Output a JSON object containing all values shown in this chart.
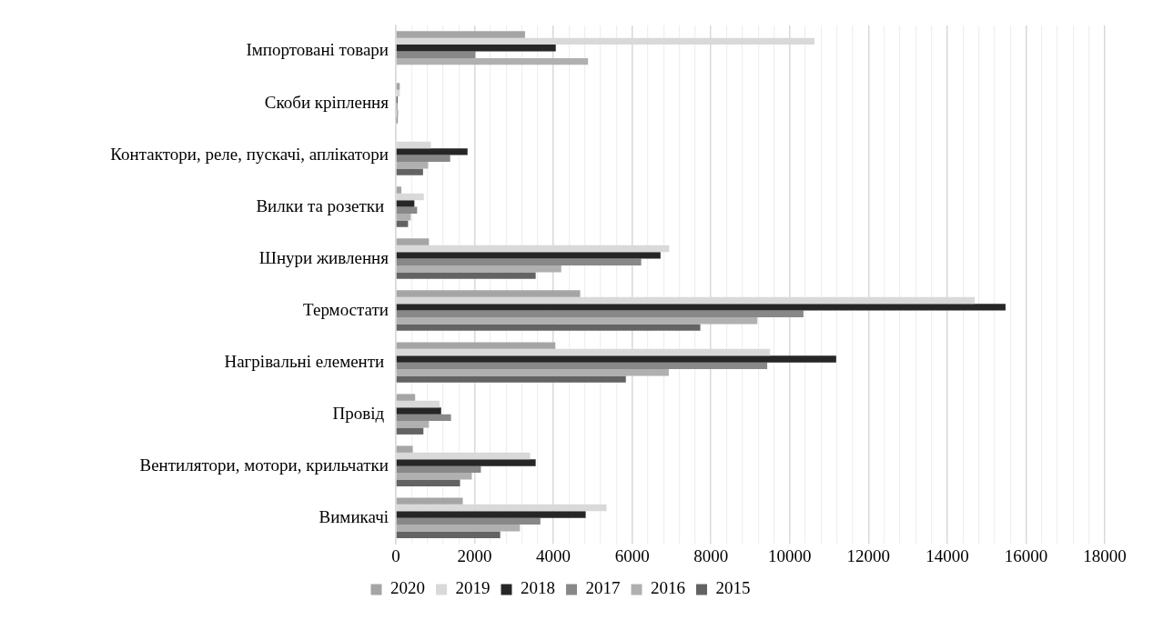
{
  "chart_data": {
    "type": "bar",
    "orientation": "horizontal",
    "categories": [
      "Імпортовані товари",
      "Скоби кріплення",
      "Контактори, реле, пускачі, аплікатори",
      "Вилки та розетки ",
      "Шнури живлення",
      "Термостати",
      "Нагрівальні елементи ",
      "Провід ",
      "Вентилятори, мотори, крильчатки",
      "Вимикачі"
    ],
    "series": [
      {
        "name": "2020",
        "color": "#a5a5a5",
        "values": [
          3280,
          100,
          null,
          140,
          840,
          4680,
          4050,
          490,
          430,
          1700
        ]
      },
      {
        "name": "2019",
        "color": "#d9d9d9",
        "values": [
          10630,
          100,
          890,
          710,
          6940,
          14700,
          9500,
          1110,
          3410,
          5350
        ]
      },
      {
        "name": "2018",
        "color": "#262626",
        "values": [
          4060,
          40,
          1820,
          470,
          6720,
          15480,
          11180,
          1150,
          3550,
          4820
        ]
      },
      {
        "name": "2017",
        "color": "#888888",
        "values": [
          2020,
          40,
          1380,
          540,
          6230,
          10350,
          9430,
          1400,
          2160,
          3670
        ]
      },
      {
        "name": "2016",
        "color": "#b0b0b0",
        "values": [
          4880,
          60,
          820,
          380,
          4200,
          9180,
          6930,
          840,
          1930,
          3150
        ]
      },
      {
        "name": "2015",
        "color": "#636363",
        "values": [
          null,
          40,
          690,
          310,
          3550,
          7730,
          5840,
          700,
          1630,
          2650
        ]
      }
    ],
    "xlim": [
      0,
      18000
    ],
    "xticks": [
      0,
      {
        "value": 400,
        "label": null
      },
      {
        "value": 800,
        "label": null
      },
      {
        "value": 1200,
        "label": null
      },
      {
        "value": 1600,
        "label": null
      },
      2000,
      {
        "value": 2400,
        "label": null
      },
      {
        "value": 2800,
        "label": null
      },
      {
        "value": 3200,
        "label": null
      },
      {
        "value": 3600,
        "label": null
      },
      4000,
      {
        "value": 4400,
        "label": null
      },
      {
        "value": 4800,
        "label": null
      },
      {
        "value": 5200,
        "label": null
      },
      {
        "value": 5600,
        "label": null
      },
      6000,
      {
        "value": 6400,
        "label": null
      },
      {
        "value": 6800,
        "label": null
      },
      {
        "value": 7200,
        "label": null
      },
      {
        "value": 7600,
        "label": null
      },
      8000,
      {
        "value": 8400,
        "label": null
      },
      {
        "value": 8800,
        "label": null
      },
      {
        "value": 9200,
        "label": null
      },
      {
        "value": 9600,
        "label": null
      },
      10000,
      {
        "value": 10400,
        "label": null
      },
      {
        "value": 10800,
        "label": null
      },
      {
        "value": 11200,
        "label": null
      },
      {
        "value": 11600,
        "label": null
      },
      12000,
      {
        "value": 12400,
        "label": null
      },
      {
        "value": 12800,
        "label": null
      },
      {
        "value": 13200,
        "label": null
      },
      {
        "value": 13600,
        "label": null
      },
      14000,
      {
        "value": 14400,
        "label": null
      },
      {
        "value": 14800,
        "label": null
      },
      {
        "value": 15200,
        "label": null
      },
      {
        "value": 15600,
        "label": null
      },
      16000,
      {
        "value": 16400,
        "label": null
      },
      {
        "value": 16800,
        "label": null
      },
      {
        "value": 17200,
        "label": null
      },
      {
        "value": 17600,
        "label": null
      },
      18000
    ],
    "grid": "x",
    "legend": "bottom"
  }
}
